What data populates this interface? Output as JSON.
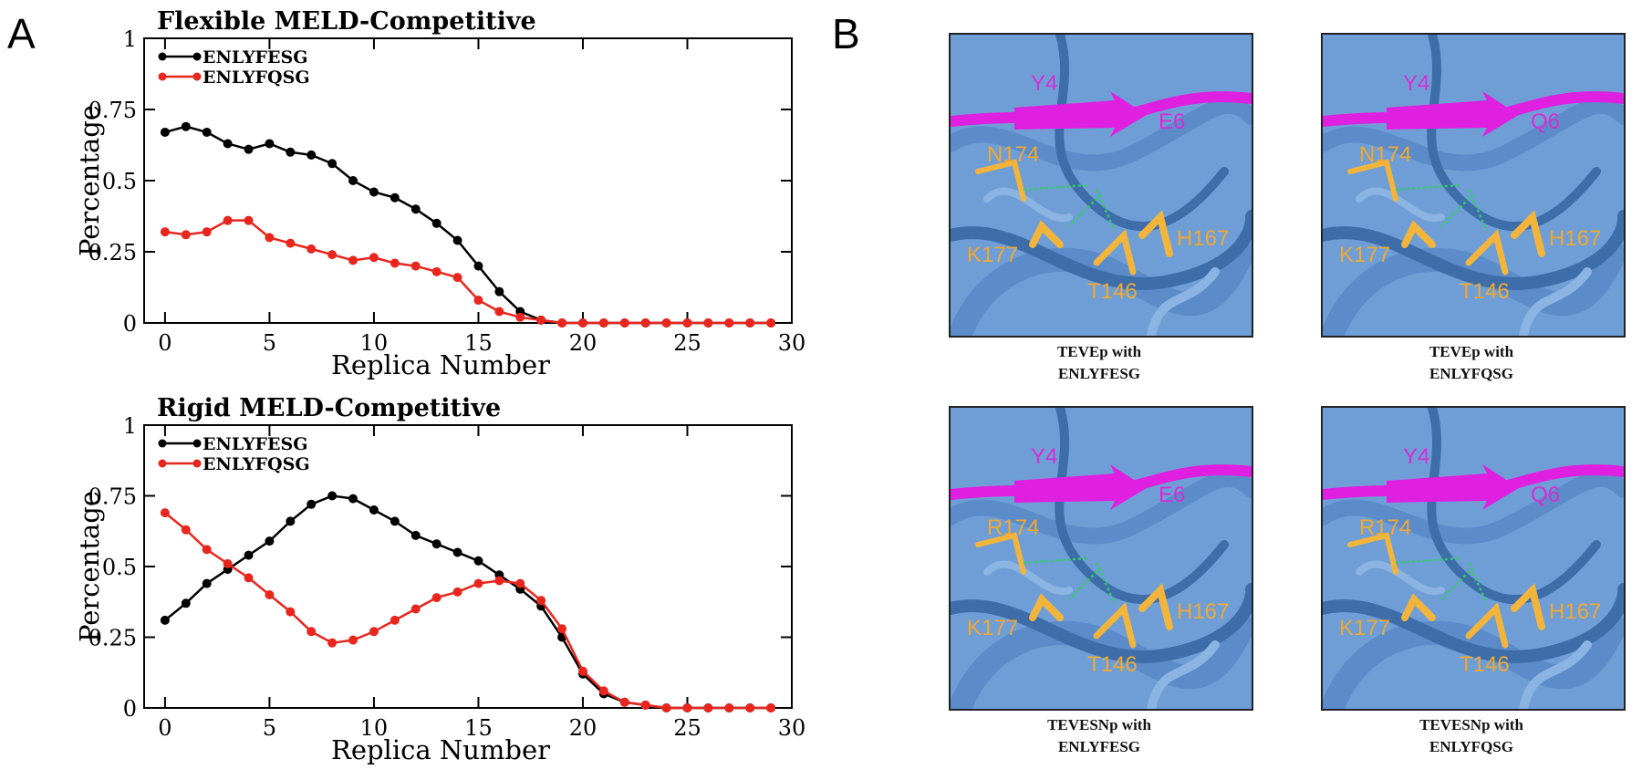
{
  "panel_labels": {
    "a": "A",
    "b": "B"
  },
  "chart_data": [
    {
      "type": "line",
      "title": "Flexible MELD-Competitive",
      "xlabel": "Replica Number",
      "ylabel": "Percentage",
      "xlim": [
        -1,
        30
      ],
      "ylim": [
        0,
        1
      ],
      "xticks": [
        0,
        5,
        10,
        15,
        20,
        25,
        30
      ],
      "yticks": [
        0,
        0.25,
        0.5,
        0.75,
        1
      ],
      "ytick_labels": [
        "0",
        "0.25",
        "0.5",
        "0.75",
        "1"
      ],
      "legend": "top-left",
      "x": [
        0,
        1,
        2,
        3,
        4,
        5,
        6,
        7,
        8,
        9,
        10,
        11,
        12,
        13,
        14,
        15,
        16,
        17,
        18,
        19,
        20,
        21,
        22,
        23,
        24,
        25,
        26,
        27,
        28,
        29
      ],
      "series": [
        {
          "name": "ENLYFESG",
          "color": "#000000",
          "values": [
            0.67,
            0.69,
            0.67,
            0.63,
            0.61,
            0.63,
            0.6,
            0.59,
            0.56,
            0.5,
            0.46,
            0.44,
            0.4,
            0.35,
            0.29,
            0.2,
            0.11,
            0.04,
            0.01,
            0,
            0,
            0,
            0,
            0,
            0,
            0,
            0,
            0,
            0,
            0
          ]
        },
        {
          "name": "ENLYFQSG",
          "color": "#e8261e",
          "values": [
            0.32,
            0.31,
            0.32,
            0.36,
            0.36,
            0.3,
            0.28,
            0.26,
            0.24,
            0.22,
            0.23,
            0.21,
            0.2,
            0.18,
            0.16,
            0.08,
            0.04,
            0.02,
            0.01,
            0,
            0,
            0,
            0,
            0,
            0,
            0,
            0,
            0,
            0,
            0
          ]
        }
      ]
    },
    {
      "type": "line",
      "title": "Rigid MELD-Competitive",
      "xlabel": "Replica Number",
      "ylabel": "Percentage",
      "xlim": [
        -1,
        30
      ],
      "ylim": [
        0,
        1
      ],
      "xticks": [
        0,
        5,
        10,
        15,
        20,
        25,
        30
      ],
      "yticks": [
        0,
        0.25,
        0.5,
        0.75,
        1
      ],
      "ytick_labels": [
        "0",
        "0.25",
        "0.5",
        "0.75",
        "1"
      ],
      "legend": "top-left",
      "x": [
        0,
        1,
        2,
        3,
        4,
        5,
        6,
        7,
        8,
        9,
        10,
        11,
        12,
        13,
        14,
        15,
        16,
        17,
        18,
        19,
        20,
        21,
        22,
        23,
        24,
        25,
        26,
        27,
        28,
        29
      ],
      "series": [
        {
          "name": "ENLYFESG",
          "color": "#000000",
          "values": [
            0.31,
            0.37,
            0.44,
            0.49,
            0.54,
            0.59,
            0.66,
            0.72,
            0.75,
            0.74,
            0.7,
            0.66,
            0.61,
            0.58,
            0.55,
            0.52,
            0.47,
            0.42,
            0.36,
            0.25,
            0.12,
            0.05,
            0.02,
            0.01,
            0,
            0,
            0,
            0,
            0,
            0
          ]
        },
        {
          "name": "ENLYFQSG",
          "color": "#e8261e",
          "values": [
            0.69,
            0.63,
            0.56,
            0.51,
            0.46,
            0.4,
            0.34,
            0.27,
            0.23,
            0.24,
            0.27,
            0.31,
            0.35,
            0.39,
            0.41,
            0.44,
            0.45,
            0.44,
            0.38,
            0.28,
            0.13,
            0.06,
            0.02,
            0.01,
            0,
            0,
            0,
            0,
            0,
            0
          ]
        }
      ]
    }
  ],
  "structures": [
    {
      "caption_line1": "TEVEp with",
      "caption_line2": "ENLYFESG",
      "labels": {
        "y4": "Y4",
        "e": "E6",
        "n": "N174",
        "k": "K177",
        "h": "H167",
        "t": "T146"
      }
    },
    {
      "caption_line1": "TEVEp with",
      "caption_line2": "ENLYFQSG",
      "labels": {
        "y4": "Y4",
        "e": "Q6",
        "n": "N174",
        "k": "K177",
        "h": "H167",
        "t": "T146"
      }
    },
    {
      "caption_line1": "TEVESNp with",
      "caption_line2": "ENLYFESG",
      "labels": {
        "y4": "Y4",
        "e": "E6",
        "n": "R174",
        "k": "K177",
        "h": "H167",
        "t": "T146"
      }
    },
    {
      "caption_line1": "TEVESNp with",
      "caption_line2": "ENLYFQSG",
      "labels": {
        "y4": "Y4",
        "e": "Q6",
        "n": "R174",
        "k": "K177",
        "h": "H167",
        "t": "T146"
      }
    }
  ],
  "colors": {
    "protein": "#6f9ed6",
    "peptide": "#e020e0",
    "sidechain": "#f2b43a",
    "label_peptide": "#d62cd6",
    "label_res": "#f0a830"
  }
}
